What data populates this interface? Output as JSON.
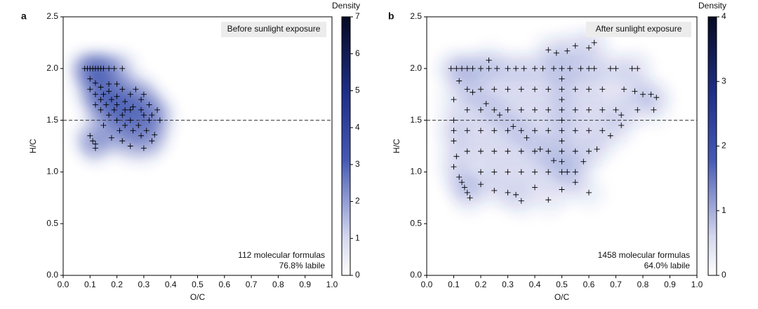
{
  "chart_data": [
    {
      "type": "scatter",
      "panel": "a",
      "title": "Before sunlight exposure",
      "annotations": [
        "112 molecular formulas",
        "76.8% labile"
      ],
      "xlabel": "O/C",
      "ylabel": "H/C",
      "xlim": [
        0,
        1
      ],
      "ylim": [
        0,
        2.5
      ],
      "xticks": [
        {
          "value": 0,
          "label": "0.0"
        },
        {
          "value": 0.1,
          "label": "0.1"
        },
        {
          "value": 0.2,
          "label": "0.2"
        },
        {
          "value": 0.3,
          "label": "0.3"
        },
        {
          "value": 0.4,
          "label": "0.4"
        },
        {
          "value": 0.5,
          "label": "0.5"
        },
        {
          "value": 0.6,
          "label": "0.6"
        },
        {
          "value": 0.7,
          "label": "0.7"
        },
        {
          "value": 0.8,
          "label": "0.8"
        },
        {
          "value": 0.9,
          "label": "0.9"
        },
        {
          "value": 1,
          "label": "1.0"
        }
      ],
      "yticks": [
        {
          "value": 0,
          "label": "0.0"
        },
        {
          "value": 0.5,
          "label": "0.5"
        },
        {
          "value": 1,
          "label": "1.0"
        },
        {
          "value": 1.5,
          "label": "1.5"
        },
        {
          "value": 2,
          "label": "2.0"
        },
        {
          "value": 2.5,
          "label": "2.5"
        }
      ],
      "hline": 1.5,
      "colorbar": {
        "label": "Density",
        "lim": [
          0,
          7
        ],
        "ticks": [
          0,
          1,
          2,
          3,
          4,
          5,
          6,
          7
        ]
      },
      "series": [
        {
          "color": "#000000",
          "density_color": "#2b3fa8",
          "x": [
            0.08,
            0.09,
            0.1,
            0.11,
            0.12,
            0.13,
            0.14,
            0.15,
            0.17,
            0.19,
            0.22,
            0.1,
            0.12,
            0.14,
            0.17,
            0.2,
            0.23,
            0.26,
            0.29,
            0.33,
            0.1,
            0.12,
            0.14,
            0.16,
            0.19,
            0.22,
            0.25,
            0.28,
            0.31,
            0.34,
            0.12,
            0.14,
            0.17,
            0.2,
            0.23,
            0.26,
            0.29,
            0.17,
            0.2,
            0.22,
            0.25,
            0.27,
            0.3,
            0.29,
            0.32,
            0.35,
            0.32,
            0.3,
            0.36,
            0.25,
            0.23,
            0.2,
            0.18,
            0.15,
            0.1,
            0.11,
            0.12,
            0.12,
            0.18,
            0.22,
            0.25,
            0.3,
            0.21,
            0.15,
            0.33
          ],
          "y": [
            2.0,
            2.0,
            2.0,
            2.0,
            2.0,
            2.0,
            2.0,
            2.0,
            2.0,
            2.0,
            2.0,
            1.9,
            1.86,
            1.82,
            1.78,
            1.73,
            1.68,
            1.63,
            1.6,
            1.55,
            1.8,
            1.75,
            1.7,
            1.65,
            1.6,
            1.55,
            1.5,
            1.45,
            1.4,
            1.36,
            1.65,
            1.6,
            1.55,
            1.5,
            1.45,
            1.4,
            1.35,
            1.85,
            1.85,
            1.8,
            1.75,
            1.8,
            1.75,
            1.7,
            1.65,
            1.6,
            1.5,
            1.55,
            1.5,
            1.6,
            1.6,
            1.65,
            1.7,
            1.75,
            1.35,
            1.3,
            1.27,
            1.23,
            1.33,
            1.3,
            1.25,
            1.23,
            1.4,
            1.45,
            1.3
          ]
        }
      ]
    },
    {
      "type": "scatter",
      "panel": "b",
      "title": "After sunlight exposure",
      "annotations": [
        "1458 molecular formulas",
        "64.0% labile"
      ],
      "xlabel": "O/C",
      "ylabel": "H/C",
      "xlim": [
        0,
        1
      ],
      "ylim": [
        0,
        2.5
      ],
      "xticks": [
        {
          "value": 0,
          "label": "0.0"
        },
        {
          "value": 0.1,
          "label": "0.1"
        },
        {
          "value": 0.2,
          "label": "0.2"
        },
        {
          "value": 0.3,
          "label": "0.3"
        },
        {
          "value": 0.4,
          "label": "0.4"
        },
        {
          "value": 0.5,
          "label": "0.5"
        },
        {
          "value": 0.6,
          "label": "0.6"
        },
        {
          "value": 0.7,
          "label": "0.7"
        },
        {
          "value": 0.8,
          "label": "0.8"
        },
        {
          "value": 0.9,
          "label": "0.9"
        },
        {
          "value": 1,
          "label": "1.0"
        }
      ],
      "yticks": [
        {
          "value": 0,
          "label": "0.0"
        },
        {
          "value": 0.5,
          "label": "0.5"
        },
        {
          "value": 1,
          "label": "1.0"
        },
        {
          "value": 1.5,
          "label": "1.5"
        },
        {
          "value": 2,
          "label": "2.0"
        },
        {
          "value": 2.5,
          "label": "2.5"
        }
      ],
      "hline": 1.5,
      "colorbar": {
        "label": "Density",
        "lim": [
          0,
          4
        ],
        "ticks": [
          0,
          1,
          2,
          3,
          4
        ]
      },
      "series": [
        {
          "color": "#000000",
          "density_color": "#2b3fa8",
          "x": [
            0.09,
            0.11,
            0.13,
            0.15,
            0.17,
            0.2,
            0.23,
            0.26,
            0.3,
            0.33,
            0.36,
            0.4,
            0.43,
            0.47,
            0.5,
            0.53,
            0.57,
            0.6,
            0.62,
            0.68,
            0.7,
            0.76,
            0.78,
            0.23,
            0.45,
            0.48,
            0.52,
            0.55,
            0.6,
            0.62,
            0.73,
            0.77,
            0.8,
            0.83,
            0.85,
            0.78,
            0.84,
            0.72,
            0.12,
            0.13,
            0.14,
            0.15,
            0.16,
            0.2,
            0.25,
            0.3,
            0.33,
            0.35,
            0.45,
            0.5,
            0.6,
            0.55,
            0.4,
            0.1,
            0.11,
            0.15,
            0.2,
            0.25,
            0.3,
            0.35,
            0.4,
            0.45,
            0.5,
            0.55,
            0.6,
            0.65,
            0.15,
            0.2,
            0.25,
            0.3,
            0.35,
            0.4,
            0.45,
            0.5,
            0.55,
            0.6,
            0.65,
            0.7,
            0.15,
            0.2,
            0.25,
            0.3,
            0.35,
            0.4,
            0.45,
            0.5,
            0.55,
            0.6,
            0.65,
            0.15,
            0.2,
            0.25,
            0.3,
            0.35,
            0.4,
            0.45,
            0.5,
            0.55,
            0.6,
            0.2,
            0.25,
            0.3,
            0.35,
            0.4,
            0.45,
            0.5,
            0.55,
            0.12,
            0.17,
            0.22,
            0.27,
            0.32,
            0.37,
            0.42,
            0.47,
            0.52,
            0.58,
            0.63,
            0.68,
            0.72,
            0.5,
            0.5,
            0.5,
            0.5,
            0.5,
            0.1,
            0.1,
            0.1,
            0.1
          ],
          "y": [
            2.0,
            2.0,
            2.0,
            2.0,
            2.0,
            2.0,
            2.0,
            2.0,
            2.0,
            2.0,
            2.0,
            2.0,
            2.0,
            2.0,
            2.0,
            2.0,
            2.0,
            2.0,
            2.0,
            2.0,
            2.0,
            2.0,
            2.0,
            2.08,
            2.18,
            2.15,
            2.17,
            2.22,
            2.2,
            2.25,
            1.8,
            1.78,
            1.75,
            1.75,
            1.72,
            1.6,
            1.6,
            1.55,
            0.95,
            0.9,
            0.85,
            0.8,
            0.75,
            0.88,
            0.82,
            0.8,
            0.78,
            0.72,
            0.73,
            0.83,
            0.8,
            0.9,
            0.85,
            1.05,
            1.15,
            1.8,
            1.8,
            1.8,
            1.8,
            1.8,
            1.8,
            1.8,
            1.8,
            1.8,
            1.8,
            1.8,
            1.6,
            1.6,
            1.6,
            1.6,
            1.6,
            1.6,
            1.6,
            1.6,
            1.6,
            1.6,
            1.6,
            1.6,
            1.4,
            1.4,
            1.4,
            1.4,
            1.4,
            1.4,
            1.4,
            1.4,
            1.4,
            1.4,
            1.4,
            1.2,
            1.2,
            1.2,
            1.2,
            1.2,
            1.2,
            1.2,
            1.2,
            1.2,
            1.2,
            1.0,
            1.0,
            1.0,
            1.0,
            1.0,
            1.0,
            1.0,
            1.0,
            1.88,
            1.77,
            1.66,
            1.55,
            1.44,
            1.33,
            1.22,
            1.11,
            1.0,
            1.1,
            1.22,
            1.35,
            1.45,
            1.9,
            1.7,
            1.5,
            1.3,
            1.1,
            1.3,
            1.4,
            1.5,
            1.7
          ]
        }
      ]
    }
  ]
}
